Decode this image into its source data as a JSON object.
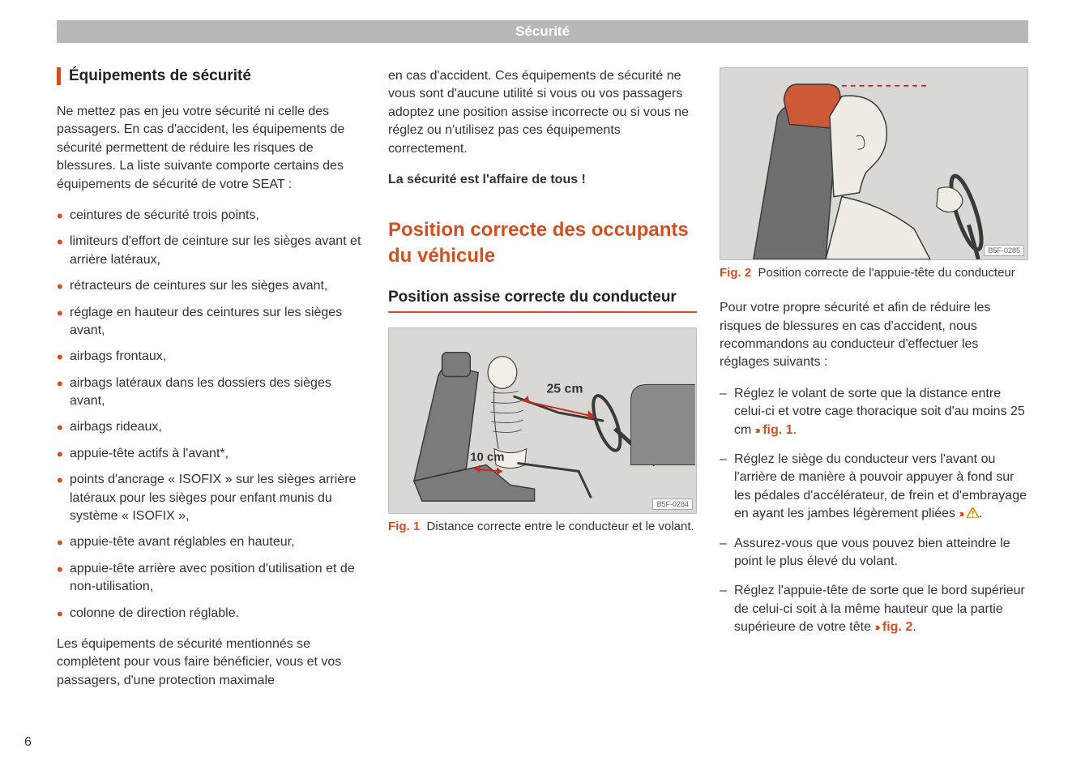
{
  "header": {
    "title": "Sécurité"
  },
  "pageNumber": "6",
  "col1": {
    "heading": "Équipements de sécurité",
    "intro": "Ne mettez pas en jeu votre sécurité ni celle des passagers. En cas d'accident, les équipements de sécurité permettent de réduire les risques de blessures. La liste suivante comporte certains des équipements de sécurité de votre SEAT :",
    "bullets": [
      "ceintures de sécurité trois points,",
      "limiteurs d'effort de ceinture sur les sièges avant et arrière latéraux,",
      "rétracteurs de ceintures sur les sièges avant,",
      "réglage en hauteur des ceintures sur les sièges avant,",
      "airbags frontaux,",
      "airbags latéraux dans les dossiers des sièges avant,",
      "airbags rideaux,",
      "appuie-tête actifs à l'avant*,",
      "points d'ancrage « ISOFIX » sur les sièges arrière latéraux pour les sièges pour enfant munis du système « ISOFIX »,",
      "appuie-tête avant réglables en hauteur,",
      "appuie-tête arrière avec position d'utilisation et de non-utilisation,",
      "colonne de direction réglable."
    ],
    "outro": "Les équipements de sécurité mentionnés se complètent pour vous faire bénéficier, vous et vos passagers, d'une protection maximale"
  },
  "col2": {
    "continuation": "en cas d'accident. Ces équipements de sécurité ne vous sont d'aucune utilité si vous ou vos passagers adoptez une position assise incorrecte ou si vous ne réglez ou n'utilisez pas ces équipements correctement.",
    "bold_line": "La sécurité est l'affaire de tous !",
    "section_title": "Position correcte des occupants du véhicule",
    "subheading": "Position assise correcte du conducteur",
    "fig1": {
      "label_25": "25 cm",
      "label_10": "10 cm",
      "code": "B5F-0284",
      "caption_num": "Fig. 1",
      "caption_text": "Distance correcte entre le conducteur et le volant."
    }
  },
  "col3": {
    "fig2": {
      "code": "B5F-0285",
      "caption_num": "Fig. 2",
      "caption_text": "Position correcte de l'appuie-tête du conducteur"
    },
    "intro": "Pour votre propre sécurité et afin de réduire les risques de blessures en cas d'accident, nous recommandons au conducteur d'effectuer les réglages suivants :",
    "items": [
      {
        "text": "Réglez le volant de sorte que la distance entre celui-ci et votre cage thoracique soit d'au moins 25 cm",
        "ref": "fig. 1",
        "chev": true,
        "warn": false,
        "period": "."
      },
      {
        "text": "Réglez le siège du conducteur vers l'avant ou l'arrière de manière à pouvoir appuyer à fond sur les pédales d'accélérateur, de frein et d'embrayage en ayant les jambes légèrement pliées",
        "ref": "",
        "chev": true,
        "warn": true,
        "period": "."
      },
      {
        "text": "Assurez-vous que vous pouvez bien atteindre le point le plus élevé du volant.",
        "ref": "",
        "chev": false,
        "warn": false,
        "period": ""
      },
      {
        "text": "Réglez l'appuie-tête de sorte que le bord supérieur de celui-ci soit à la même hauteur que la partie supérieure de votre tête",
        "ref": "fig. 2",
        "chev": true,
        "warn": false,
        "period": "."
      }
    ]
  },
  "colors": {
    "accent": "#d15022",
    "header_bg": "#b8b8b8",
    "fig_bg": "#d9d8d4"
  }
}
